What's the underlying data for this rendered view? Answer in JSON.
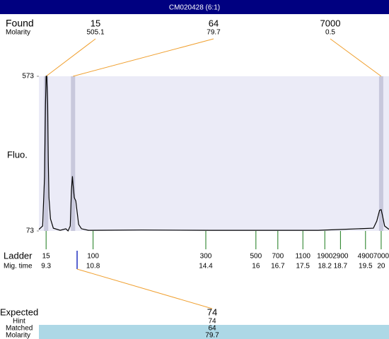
{
  "header": {
    "title": "CM020428 (6:1)"
  },
  "chart_data": {
    "type": "line",
    "y_label": "Fluo.",
    "ylim": [
      73,
      573
    ],
    "yticks": [
      73,
      573
    ],
    "xlim": [
      9.07,
      20.25
    ],
    "x": [
      9.07,
      9.19,
      9.25,
      9.28,
      9.3,
      9.32,
      9.35,
      9.37,
      9.39,
      9.44,
      9.53,
      9.75,
      9.93,
      10.0,
      10.07,
      10.11,
      10.14,
      10.16,
      10.2,
      10.25,
      10.29,
      10.34,
      10.43,
      10.65,
      12.35,
      14.6,
      17.99,
      19.75,
      19.86,
      19.95,
      20.0,
      20.04,
      20.11,
      20.25
    ],
    "series": [
      {
        "color": "#000000",
        "values": [
          78,
          89,
          250,
          481,
          573,
          573,
          481,
          296,
          181,
          112,
          82,
          75,
          80,
          73,
          89,
          204,
          250,
          223,
          181,
          170,
          135,
          94,
          80,
          75,
          76,
          75,
          75,
          82,
          105,
          140,
          142,
          124,
          89,
          78
        ]
      }
    ],
    "ladder_label": "Ladder",
    "time_label": "Mig. time",
    "ladder": [
      15,
      100,
      300,
      500,
      700,
      1100,
      1900,
      2900,
      4900,
      7000
    ],
    "xticks": [
      9.3,
      10.8,
      14.4,
      16,
      16.7,
      17.5,
      18.2,
      18.7,
      19.5,
      20
    ],
    "found": {
      "label": "Found",
      "sublabel": "Molarity",
      "x": [
        9.3,
        10.16,
        20.0
      ],
      "sizes": [
        15,
        64,
        7000
      ],
      "molarity": [
        505.1,
        79.7,
        0.5
      ]
    },
    "expected": {
      "x": 10.29,
      "labels": [
        "Expected",
        "Hint",
        "Matched",
        "Molarity"
      ],
      "values": [
        74,
        74,
        64,
        79.7
      ]
    }
  }
}
